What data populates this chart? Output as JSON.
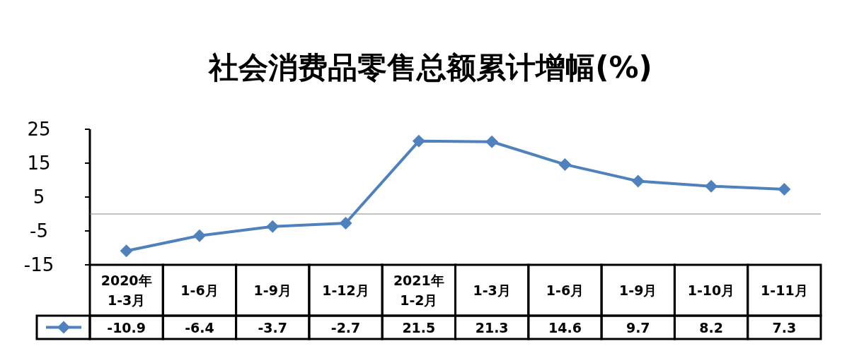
{
  "chart_data": {
    "type": "line",
    "title": "社会消费品零售总额累计增幅(%)",
    "categories": [
      "2020年\n1-3月",
      "1-6月",
      "1-9月",
      "1-12月",
      "2021年\n1-2月",
      "1-3月",
      "1-6月",
      "1-9月",
      "1-10月",
      "1-11月"
    ],
    "series": [
      {
        "color": "#4f81bd",
        "values": [
          -10.9,
          -6.4,
          -3.7,
          -2.7,
          21.5,
          21.3,
          14.6,
          9.7,
          8.2,
          7.3
        ]
      }
    ],
    "ylim": [
      -15,
      25
    ],
    "yticks": [
      -15,
      -5,
      5,
      15,
      25
    ],
    "marker": "diamond",
    "line_style": "solid",
    "grid": false,
    "data_labels": true
  }
}
